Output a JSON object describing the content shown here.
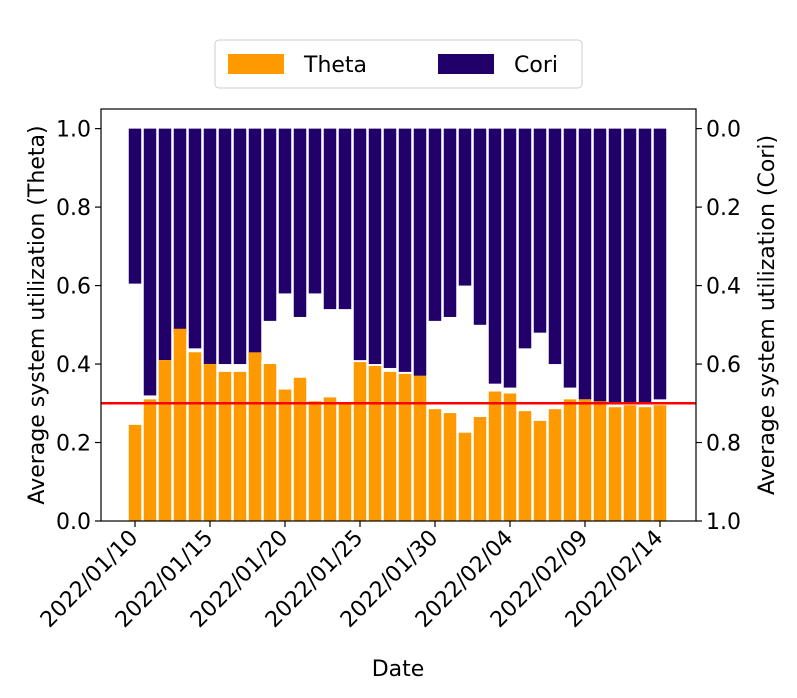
{
  "chart_data": {
    "type": "bar",
    "title": "",
    "xlabel": "Date",
    "ylabel_left": "Average system utilization (Theta)",
    "ylabel_right": "Average system utilization (Cori)",
    "ylim_left": [
      0.0,
      1.05
    ],
    "ylim_right_inverted": [
      0.0,
      1.0
    ],
    "yticks_left": [
      "0.0",
      "0.2",
      "0.4",
      "0.6",
      "0.8",
      "1.0"
    ],
    "yticks_right": [
      "0.0",
      "0.2",
      "0.4",
      "0.6",
      "0.8",
      "1.0"
    ],
    "xtick_labels": [
      "2022/01/10",
      "2022/01/15",
      "2022/01/20",
      "2022/01/25",
      "2022/01/30",
      "2022/02/04",
      "2022/02/09",
      "2022/02/14"
    ],
    "xtick_indices": [
      0,
      5,
      10,
      15,
      20,
      25,
      30,
      35
    ],
    "start_date": "2022/01/10",
    "reference_line": {
      "value": 0.3,
      "color": "#ff0000"
    },
    "legend": {
      "placement": "top-center",
      "entries": [
        "Theta",
        "Cori"
      ]
    },
    "series": [
      {
        "name": "Theta",
        "color": "#ff9900",
        "axis": "left",
        "values": [
          0.245,
          0.31,
          0.41,
          0.49,
          0.43,
          0.4,
          0.38,
          0.38,
          0.43,
          0.4,
          0.335,
          0.365,
          0.305,
          0.315,
          0.3,
          0.405,
          0.395,
          0.38,
          0.375,
          0.37,
          0.285,
          0.275,
          0.225,
          0.265,
          0.33,
          0.325,
          0.28,
          0.255,
          0.285,
          0.31,
          0.31,
          0.305,
          0.29,
          0.295,
          0.29,
          0.295
        ]
      },
      {
        "name": "Cori",
        "color": "#22006a",
        "axis": "right-inverted",
        "values": [
          0.395,
          0.68,
          0.59,
          0.52,
          0.56,
          0.6,
          0.6,
          0.6,
          0.59,
          0.49,
          0.42,
          0.48,
          0.42,
          0.46,
          0.46,
          0.59,
          0.6,
          0.61,
          0.62,
          0.63,
          0.49,
          0.48,
          0.4,
          0.5,
          0.65,
          0.66,
          0.56,
          0.52,
          0.6,
          0.66,
          0.69,
          0.7,
          0.7,
          0.7,
          0.7,
          0.69
        ]
      }
    ]
  }
}
